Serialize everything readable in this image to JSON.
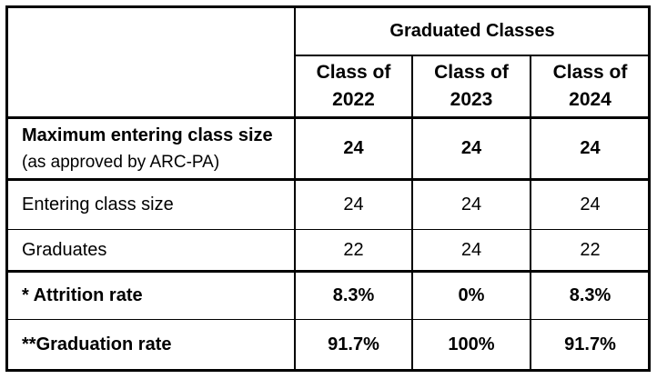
{
  "header": {
    "group": "Graduated Classes",
    "classes": [
      {
        "line1": "Class of",
        "line2": "2022"
      },
      {
        "line1": "Class of",
        "line2": "2023"
      },
      {
        "line1": "Class of",
        "line2": "2024"
      }
    ]
  },
  "rows": [
    {
      "label_bold": "Maximum entering class size",
      "label_note": "(as approved by ARC-PA)",
      "values": [
        "24",
        "24",
        "24"
      ]
    },
    {
      "label": "Entering class size",
      "values": [
        "24",
        "24",
        "24"
      ]
    },
    {
      "label": "Graduates",
      "values": [
        "22",
        "24",
        "22"
      ]
    },
    {
      "label": "* Attrition rate",
      "values": [
        "8.3%",
        "0%",
        "8.3%"
      ]
    },
    {
      "label": "**Graduation rate",
      "values": [
        "91.7%",
        "100%",
        "91.7%"
      ]
    }
  ]
}
